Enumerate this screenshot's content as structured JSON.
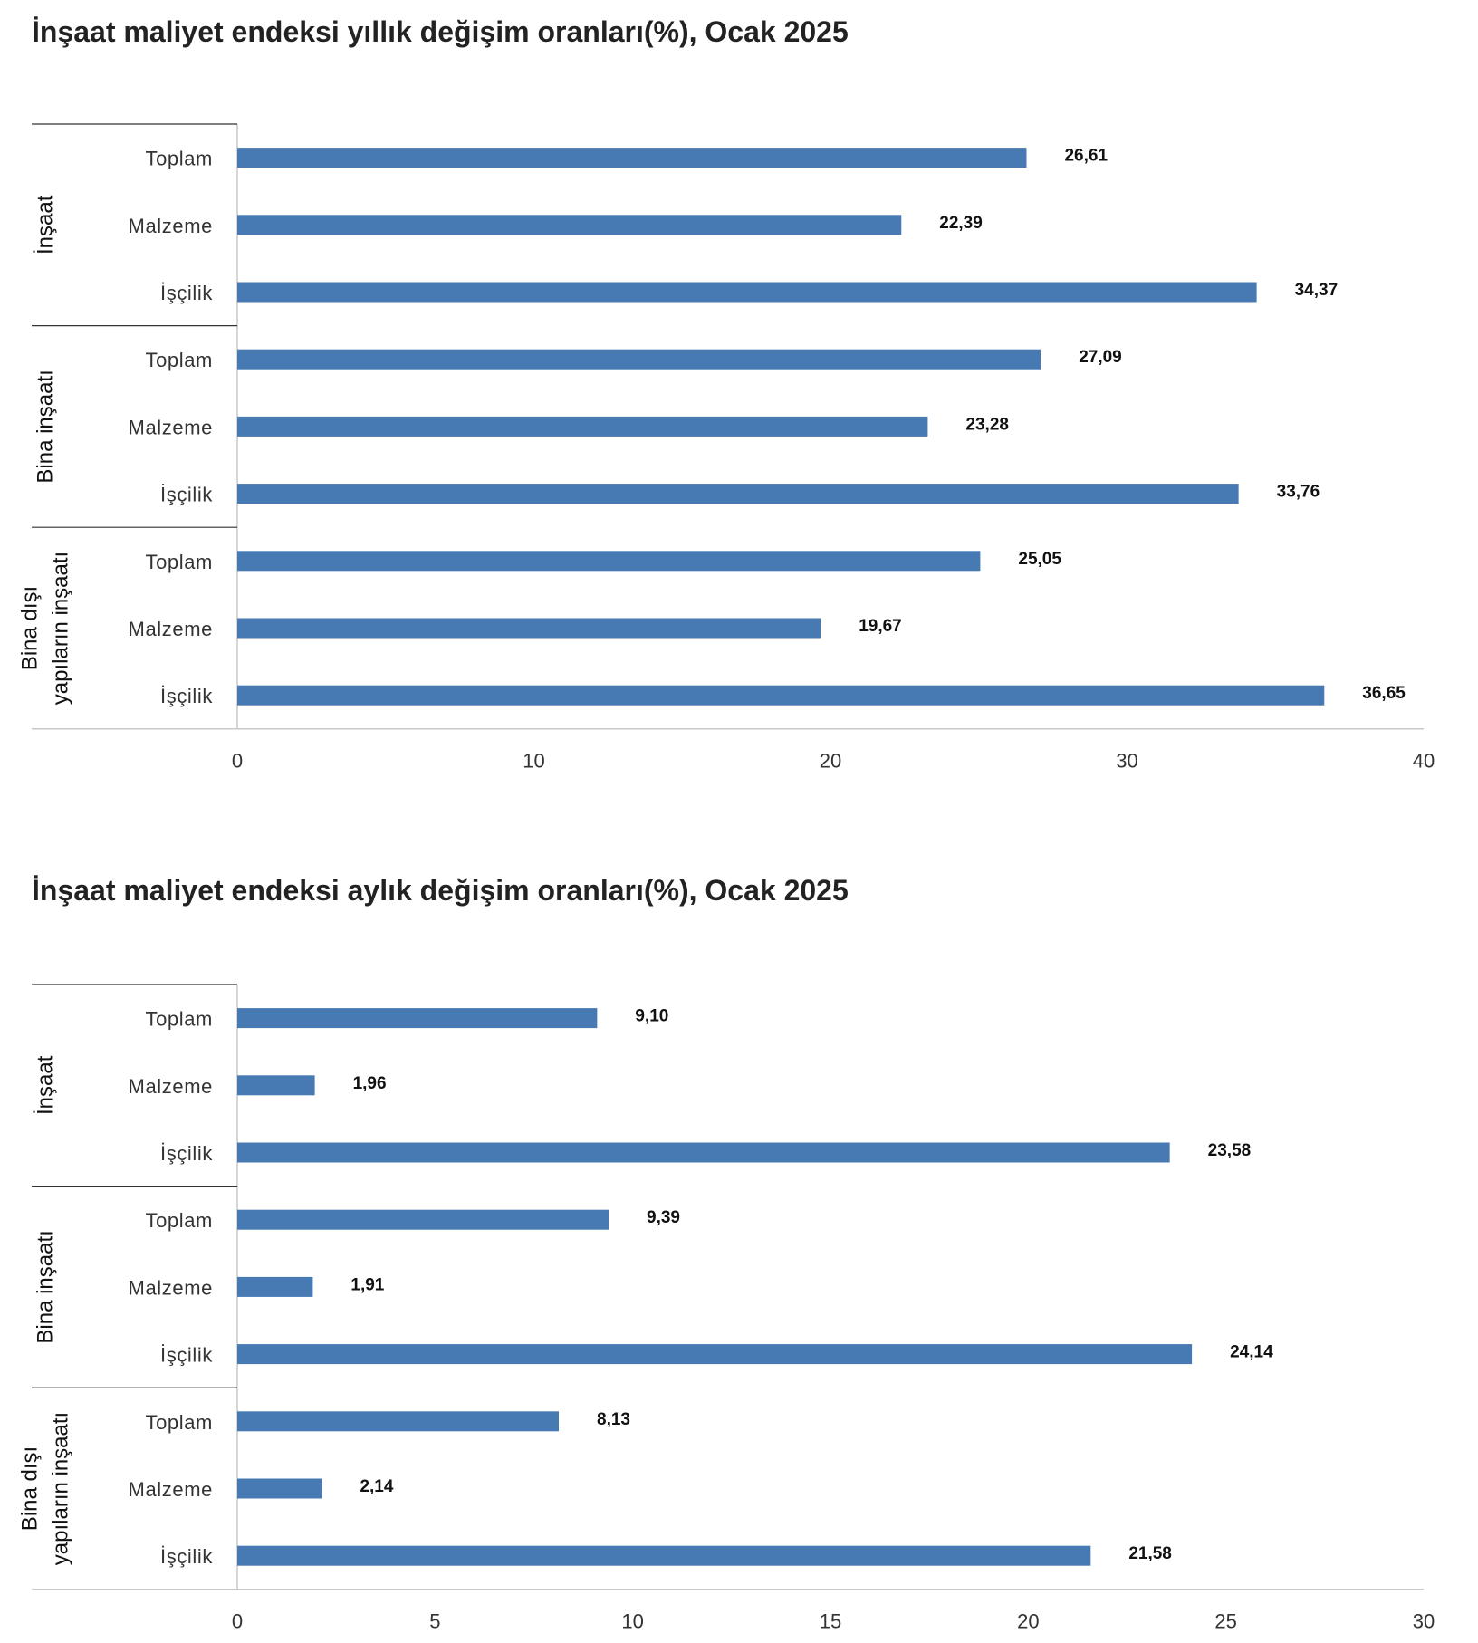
{
  "chart_data": [
    {
      "type": "bar",
      "orientation": "horizontal",
      "title": "İnşaat maliyet endeksi yıllık değişim oranları(%), Ocak 2025",
      "groups": [
        {
          "label_lines": [
            "İnşaat"
          ],
          "categories": [
            "Toplam",
            "Malzeme",
            "İşçilik"
          ],
          "values": [
            26.61,
            22.39,
            34.37
          ],
          "value_labels": [
            "26,61",
            "22,39",
            "34,37"
          ]
        },
        {
          "label_lines": [
            "Bina inşaatı"
          ],
          "categories": [
            "Toplam",
            "Malzeme",
            "İşçilik"
          ],
          "values": [
            27.09,
            23.28,
            33.76
          ],
          "value_labels": [
            "27,09",
            "23,28",
            "33,76"
          ]
        },
        {
          "label_lines": [
            "Bina dışı",
            "yapıların inşaatı"
          ],
          "categories": [
            "Toplam",
            "Malzeme",
            "İşçilik"
          ],
          "values": [
            25.05,
            19.67,
            36.65
          ],
          "value_labels": [
            "25,05",
            "19,67",
            "36,65"
          ]
        }
      ],
      "xlim": [
        0,
        40
      ],
      "xticks": [
        0,
        10,
        20,
        30,
        40
      ],
      "grid": false,
      "bar_color": "#4779b3"
    },
    {
      "type": "bar",
      "orientation": "horizontal",
      "title": "İnşaat maliyet endeksi aylık değişim oranları(%), Ocak 2025",
      "groups": [
        {
          "label_lines": [
            "İnşaat"
          ],
          "categories": [
            "Toplam",
            "Malzeme",
            "İşçilik"
          ],
          "values": [
            9.1,
            1.96,
            23.58
          ],
          "value_labels": [
            "9,10",
            "1,96",
            "23,58"
          ]
        },
        {
          "label_lines": [
            "Bina inşaatı"
          ],
          "categories": [
            "Toplam",
            "Malzeme",
            "İşçilik"
          ],
          "values": [
            9.39,
            1.91,
            24.14
          ],
          "value_labels": [
            "9,39",
            "1,91",
            "24,14"
          ]
        },
        {
          "label_lines": [
            "Bina dışı",
            "yapıların inşaatı"
          ],
          "categories": [
            "Toplam",
            "Malzeme",
            "İşçilik"
          ],
          "values": [
            8.13,
            2.14,
            21.58
          ],
          "value_labels": [
            "8,13",
            "2,14",
            "21,58"
          ]
        }
      ],
      "xlim": [
        0,
        30
      ],
      "xticks": [
        0,
        5,
        10,
        15,
        20,
        25,
        30
      ],
      "grid": false,
      "bar_color": "#4779b3"
    }
  ]
}
